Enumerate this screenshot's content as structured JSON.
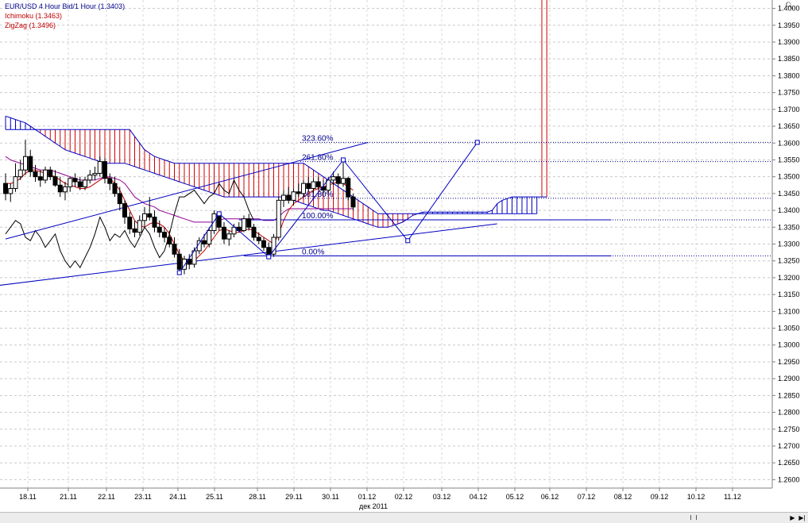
{
  "legend": {
    "title": "EUR/USD 4 Hour Bid/1 Hour (1.3403)",
    "ichimoku": "Ichimoku (1.3463)",
    "zigzag": "ZigZag (1.3496)"
  },
  "colors": {
    "ichimoku": "#c00000",
    "zigzag": "#c00000",
    "legend_title": "#00008b",
    "cloud_bull": "#0000c0",
    "cloud_bear": "#d00000",
    "kijun": "#900090",
    "chikou": "#000000",
    "zigzag_line": "#0000c0",
    "trendline": "#0000c0"
  },
  "zoom_icon": "magnifier-icon",
  "chart_data": {
    "type": "candlestick",
    "x_tick_labels": [
      "18.11",
      "21.11",
      "22.11",
      "23.11",
      "24.11",
      "25.11",
      "28.11",
      "29.11",
      "30.11",
      "01.12",
      "02.12",
      "03.12",
      "04.12",
      "05.12",
      "06.12",
      "07.12",
      "08.12",
      "09.12",
      "10.12",
      "11.12"
    ],
    "x_axis_month": "дек 2011",
    "y_tick_labels": [
      "1.4000",
      "1.3950",
      "1.3900",
      "1.3850",
      "1.3800",
      "1.3750",
      "1.3700",
      "1.3650",
      "1.3600",
      "1.3550",
      "1.3500",
      "1.3450",
      "1.3400",
      "1.3350",
      "1.3300",
      "1.3250",
      "1.3200",
      "1.3150",
      "1.3100",
      "1.3050",
      "1.3000",
      "1.2950",
      "1.2900",
      "1.2850",
      "1.2800",
      "1.2750",
      "1.2700",
      "1.2650",
      "1.2600"
    ],
    "ylim": [
      1.2575,
      1.4025
    ],
    "grid": true,
    "fib_levels": [
      {
        "label": "323.60%",
        "value": 1.3602
      },
      {
        "label": "261.80%",
        "value": 1.3545
      },
      {
        "label": "161.80%",
        "value": 1.3436
      },
      {
        "label": "100.00%",
        "value": 1.3372
      },
      {
        "label": "0.00%",
        "value": 1.3265
      }
    ],
    "candles": [
      {
        "o": 1.348,
        "h": 1.351,
        "l": 1.343,
        "c": 1.345
      },
      {
        "o": 1.345,
        "h": 1.348,
        "l": 1.3425,
        "c": 1.3465
      },
      {
        "o": 1.3465,
        "h": 1.354,
        "l": 1.3455,
        "c": 1.35
      },
      {
        "o": 1.35,
        "h": 1.355,
        "l": 1.349,
        "c": 1.352
      },
      {
        "o": 1.352,
        "h": 1.361,
        "l": 1.3505,
        "c": 1.356
      },
      {
        "o": 1.356,
        "h": 1.358,
        "l": 1.35,
        "c": 1.3515
      },
      {
        "o": 1.3515,
        "h": 1.3535,
        "l": 1.3485,
        "c": 1.35
      },
      {
        "o": 1.35,
        "h": 1.352,
        "l": 1.347,
        "c": 1.349
      },
      {
        "o": 1.349,
        "h": 1.353,
        "l": 1.348,
        "c": 1.352
      },
      {
        "o": 1.352,
        "h": 1.353,
        "l": 1.349,
        "c": 1.35
      },
      {
        "o": 1.35,
        "h": 1.352,
        "l": 1.347,
        "c": 1.3475
      },
      {
        "o": 1.3475,
        "h": 1.35,
        "l": 1.344,
        "c": 1.3455
      },
      {
        "o": 1.3455,
        "h": 1.3485,
        "l": 1.343,
        "c": 1.347
      },
      {
        "o": 1.347,
        "h": 1.35,
        "l": 1.3455,
        "c": 1.3495
      },
      {
        "o": 1.3495,
        "h": 1.351,
        "l": 1.347,
        "c": 1.3485
      },
      {
        "o": 1.3485,
        "h": 1.35,
        "l": 1.346,
        "c": 1.347
      },
      {
        "o": 1.347,
        "h": 1.35,
        "l": 1.346,
        "c": 1.349
      },
      {
        "o": 1.349,
        "h": 1.352,
        "l": 1.348,
        "c": 1.3505
      },
      {
        "o": 1.3505,
        "h": 1.353,
        "l": 1.349,
        "c": 1.351
      },
      {
        "o": 1.351,
        "h": 1.356,
        "l": 1.35,
        "c": 1.3545
      },
      {
        "o": 1.3545,
        "h": 1.3555,
        "l": 1.348,
        "c": 1.3495
      },
      {
        "o": 1.3495,
        "h": 1.351,
        "l": 1.346,
        "c": 1.348
      },
      {
        "o": 1.348,
        "h": 1.35,
        "l": 1.344,
        "c": 1.345
      },
      {
        "o": 1.345,
        "h": 1.347,
        "l": 1.34,
        "c": 1.342
      },
      {
        "o": 1.342,
        "h": 1.343,
        "l": 1.336,
        "c": 1.338
      },
      {
        "o": 1.338,
        "h": 1.3395,
        "l": 1.333,
        "c": 1.3345
      },
      {
        "o": 1.3345,
        "h": 1.337,
        "l": 1.332,
        "c": 1.3335
      },
      {
        "o": 1.3335,
        "h": 1.3385,
        "l": 1.3325,
        "c": 1.337
      },
      {
        "o": 1.337,
        "h": 1.341,
        "l": 1.335,
        "c": 1.339
      },
      {
        "o": 1.339,
        "h": 1.344,
        "l": 1.337,
        "c": 1.338
      },
      {
        "o": 1.338,
        "h": 1.34,
        "l": 1.3335,
        "c": 1.335
      },
      {
        "o": 1.335,
        "h": 1.337,
        "l": 1.332,
        "c": 1.3335
      },
      {
        "o": 1.3335,
        "h": 1.335,
        "l": 1.3305,
        "c": 1.332
      },
      {
        "o": 1.332,
        "h": 1.334,
        "l": 1.329,
        "c": 1.33
      },
      {
        "o": 1.33,
        "h": 1.332,
        "l": 1.326,
        "c": 1.327
      },
      {
        "o": 1.327,
        "h": 1.3285,
        "l": 1.3215,
        "c": 1.3225
      },
      {
        "o": 1.3225,
        "h": 1.3265,
        "l": 1.321,
        "c": 1.3255
      },
      {
        "o": 1.3255,
        "h": 1.327,
        "l": 1.3225,
        "c": 1.324
      },
      {
        "o": 1.324,
        "h": 1.329,
        "l": 1.323,
        "c": 1.328
      },
      {
        "o": 1.328,
        "h": 1.332,
        "l": 1.327,
        "c": 1.331
      },
      {
        "o": 1.331,
        "h": 1.333,
        "l": 1.329,
        "c": 1.33
      },
      {
        "o": 1.33,
        "h": 1.335,
        "l": 1.329,
        "c": 1.334
      },
      {
        "o": 1.334,
        "h": 1.34,
        "l": 1.333,
        "c": 1.339
      },
      {
        "o": 1.339,
        "h": 1.3395,
        "l": 1.334,
        "c": 1.335
      },
      {
        "o": 1.335,
        "h": 1.3365,
        "l": 1.33,
        "c": 1.3315
      },
      {
        "o": 1.3315,
        "h": 1.334,
        "l": 1.3295,
        "c": 1.333
      },
      {
        "o": 1.333,
        "h": 1.336,
        "l": 1.332,
        "c": 1.335
      },
      {
        "o": 1.335,
        "h": 1.3365,
        "l": 1.3335,
        "c": 1.334
      },
      {
        "o": 1.334,
        "h": 1.3385,
        "l": 1.3335,
        "c": 1.3375
      },
      {
        "o": 1.3375,
        "h": 1.339,
        "l": 1.334,
        "c": 1.335
      },
      {
        "o": 1.335,
        "h": 1.336,
        "l": 1.331,
        "c": 1.332
      },
      {
        "o": 1.332,
        "h": 1.3335,
        "l": 1.33,
        "c": 1.331
      },
      {
        "o": 1.331,
        "h": 1.332,
        "l": 1.328,
        "c": 1.329
      },
      {
        "o": 1.329,
        "h": 1.3305,
        "l": 1.326,
        "c": 1.327
      },
      {
        "o": 1.327,
        "h": 1.333,
        "l": 1.3262,
        "c": 1.332
      },
      {
        "o": 1.332,
        "h": 1.344,
        "l": 1.331,
        "c": 1.343
      },
      {
        "o": 1.343,
        "h": 1.346,
        "l": 1.341,
        "c": 1.3445
      },
      {
        "o": 1.3445,
        "h": 1.347,
        "l": 1.342,
        "c": 1.343
      },
      {
        "o": 1.343,
        "h": 1.3465,
        "l": 1.3415,
        "c": 1.3455
      },
      {
        "o": 1.3455,
        "h": 1.348,
        "l": 1.344,
        "c": 1.345
      },
      {
        "o": 1.345,
        "h": 1.349,
        "l": 1.344,
        "c": 1.348
      },
      {
        "o": 1.348,
        "h": 1.35,
        "l": 1.3455,
        "c": 1.3465
      },
      {
        "o": 1.3465,
        "h": 1.3495,
        "l": 1.345,
        "c": 1.3485
      },
      {
        "o": 1.3485,
        "h": 1.35,
        "l": 1.346,
        "c": 1.347
      },
      {
        "o": 1.347,
        "h": 1.349,
        "l": 1.345,
        "c": 1.346
      },
      {
        "o": 1.346,
        "h": 1.35,
        "l": 1.3455,
        "c": 1.349
      },
      {
        "o": 1.349,
        "h": 1.3515,
        "l": 1.3475,
        "c": 1.35
      },
      {
        "o": 1.35,
        "h": 1.351,
        "l": 1.347,
        "c": 1.348
      },
      {
        "o": 1.348,
        "h": 1.355,
        "l": 1.347,
        "c": 1.3495
      },
      {
        "o": 1.3495,
        "h": 1.35,
        "l": 1.343,
        "c": 1.344
      },
      {
        "o": 1.344,
        "h": 1.345,
        "l": 1.34,
        "c": 1.341
      }
    ],
    "zigzag": [
      {
        "i": 35,
        "v": 1.3215
      },
      {
        "i": 43,
        "v": 1.339
      },
      {
        "i": 53,
        "v": 1.3262
      },
      {
        "i": 68,
        "v": 1.355
      },
      {
        "i": 81,
        "v": 1.331
      },
      {
        "i": 95,
        "v": 1.3602
      }
    ],
    "trendlines": [
      {
        "x1": -8,
        "y1": 1.3165,
        "x2": 99,
        "y2": 1.336
      },
      {
        "x1": 0,
        "y1": 1.3315,
        "x2": 73,
        "y2": 1.3602
      },
      {
        "x1": 47,
        "y1": 1.3372,
        "x2": 122,
        "y2": 1.3372
      },
      {
        "x1": 48,
        "y1": 1.3265,
        "x2": 122,
        "y2": 1.3265
      }
    ],
    "ichimoku": {
      "tenkan": [
        1.348,
        1.348,
        1.3485,
        1.3495,
        1.351,
        1.352,
        1.352,
        1.3515,
        1.351,
        1.3505,
        1.35,
        1.349,
        1.348,
        1.3475,
        1.347,
        1.3465,
        1.3465,
        1.347,
        1.348,
        1.349,
        1.35,
        1.3495,
        1.348,
        1.346,
        1.343,
        1.34,
        1.337,
        1.3355,
        1.335,
        1.336,
        1.3365,
        1.336,
        1.335,
        1.333,
        1.33,
        1.327,
        1.325,
        1.3245,
        1.325,
        1.3265,
        1.328,
        1.33,
        1.332,
        1.334,
        1.3345,
        1.334,
        1.3335,
        1.3335,
        1.334,
        1.3345,
        1.334,
        1.333,
        1.332,
        1.331,
        1.33,
        1.333,
        1.337,
        1.34,
        1.342,
        1.343,
        1.344,
        1.345,
        1.346,
        1.3465,
        1.347,
        1.3475,
        1.348,
        1.3485,
        1.348,
        1.347,
        1.346
      ],
      "kijun": [
        1.356,
        1.355,
        1.3545,
        1.354,
        1.3535,
        1.353,
        1.3525,
        1.352,
        1.352,
        1.352,
        1.3515,
        1.351,
        1.3505,
        1.35,
        1.3495,
        1.349,
        1.349,
        1.349,
        1.349,
        1.3495,
        1.35,
        1.35,
        1.3495,
        1.349,
        1.348,
        1.346,
        1.344,
        1.343,
        1.342,
        1.3415,
        1.341,
        1.34,
        1.3395,
        1.339,
        1.3385,
        1.338,
        1.3375,
        1.337,
        1.3365,
        1.3365,
        1.3365,
        1.3365,
        1.3365,
        1.337,
        1.3375,
        1.3375,
        1.3375,
        1.3375,
        1.3375,
        1.3375,
        1.3375,
        1.3375,
        1.337,
        1.337,
        1.337,
        1.338,
        1.3395,
        1.3405,
        1.3405,
        1.3405,
        1.3405,
        1.3405,
        1.3405,
        1.3405,
        1.3405,
        1.3405,
        1.3405,
        1.3405,
        1.3405,
        1.3405,
        1.3405
      ],
      "senkou_a": [
        1.368,
        1.3675,
        1.367,
        1.3665,
        1.366,
        1.365,
        1.364,
        1.363,
        1.362,
        1.361,
        1.36,
        1.359,
        1.358,
        1.3575,
        1.357,
        1.3565,
        1.356,
        1.3555,
        1.355,
        1.3545,
        1.354,
        1.354,
        1.354,
        1.354,
        1.354,
        1.3535,
        1.353,
        1.3525,
        1.352,
        1.3515,
        1.351,
        1.3505,
        1.35,
        1.3495,
        1.349,
        1.3485,
        1.348,
        1.3475,
        1.347,
        1.3465,
        1.346,
        1.3455,
        1.345,
        1.3445,
        1.344,
        1.344,
        1.344,
        1.344,
        1.344,
        1.344,
        1.344,
        1.344,
        1.344,
        1.344,
        1.344,
        1.344,
        1.344,
        1.344,
        1.343,
        1.3425,
        1.342,
        1.3415,
        1.341,
        1.3405,
        1.34,
        1.34,
        1.3395,
        1.339,
        1.3385,
        1.338,
        1.3375,
        1.337,
        1.3365,
        1.336,
        1.3355,
        1.335,
        1.335,
        1.335,
        1.3355,
        1.336,
        1.3365,
        1.3375,
        1.3385,
        1.339,
        1.3395,
        1.3395,
        1.3395,
        1.3395,
        1.3395,
        1.3395,
        1.3395,
        1.3395,
        1.3395,
        1.3395,
        1.3395,
        1.3395,
        1.3395,
        1.3395,
        1.34,
        1.342,
        1.343,
        1.3435,
        1.344,
        1.344,
        1.344,
        1.344,
        1.344,
        1.344,
        1.344,
        1.344
      ],
      "senkou_b": [
        1.364,
        1.364,
        1.364,
        1.364,
        1.364,
        1.364,
        1.364,
        1.364,
        1.364,
        1.364,
        1.364,
        1.364,
        1.364,
        1.364,
        1.364,
        1.364,
        1.364,
        1.364,
        1.364,
        1.364,
        1.364,
        1.364,
        1.364,
        1.364,
        1.364,
        1.364,
        1.362,
        1.36,
        1.358,
        1.357,
        1.356,
        1.3555,
        1.355,
        1.3545,
        1.354,
        1.354,
        1.354,
        1.354,
        1.354,
        1.354,
        1.354,
        1.354,
        1.354,
        1.354,
        1.354,
        1.354,
        1.354,
        1.354,
        1.354,
        1.354,
        1.354,
        1.354,
        1.354,
        1.354,
        1.354,
        1.354,
        1.354,
        1.354,
        1.354,
        1.354,
        1.354,
        1.353,
        1.352,
        1.351,
        1.35,
        1.349,
        1.348,
        1.347,
        1.346,
        1.345,
        1.344,
        1.343,
        1.342,
        1.341,
        1.34,
        1.339,
        1.339,
        1.339,
        1.339,
        1.339,
        1.339,
        1.339,
        1.339,
        1.339,
        1.339,
        1.339,
        1.339,
        1.339,
        1.339,
        1.339,
        1.339,
        1.339,
        1.339,
        1.339,
        1.339,
        1.339,
        1.339,
        1.339,
        1.339,
        1.339,
        1.339,
        1.339,
        1.339,
        1.339,
        1.339,
        1.339,
        1.339,
        1.339
      ],
      "chikou": [
        1.333,
        1.335,
        1.337,
        1.336,
        1.332,
        1.331,
        1.334,
        1.332,
        1.329,
        1.331,
        1.333,
        1.328,
        1.325,
        1.323,
        1.325,
        1.323,
        1.326,
        1.329,
        1.333,
        1.338,
        1.335,
        1.331,
        1.333,
        1.332,
        1.334,
        1.331,
        1.329,
        1.332,
        1.335,
        1.333,
        1.329,
        1.326,
        1.328,
        1.333,
        1.339,
        1.344,
        1.344,
        1.345,
        1.346,
        1.344,
        1.342,
        1.344,
        1.345,
        1.348,
        1.346,
        1.345,
        1.349,
        1.346,
        1.344,
        1.34,
        1.337
      ]
    }
  }
}
